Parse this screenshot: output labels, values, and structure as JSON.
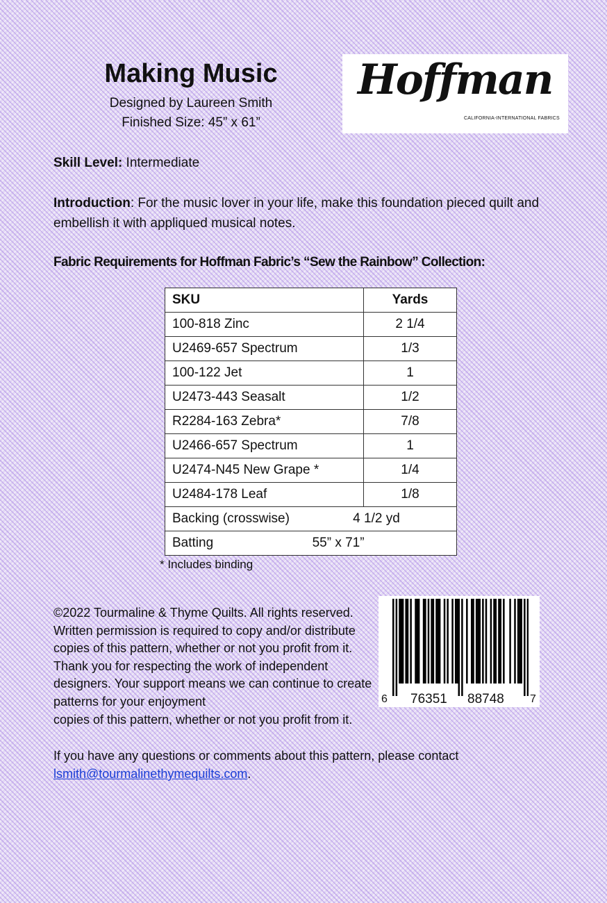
{
  "title": "Making Music",
  "designer": "Designed by Laureen Smith",
  "finished_size": "Finished Size: 45” x 61”",
  "logo": {
    "text": "Hoffman",
    "tagline": "CALIFORNIA-INTERNATIONAL FABRICS"
  },
  "skill": {
    "label": "Skill Level:",
    "value": " Intermediate"
  },
  "intro": {
    "label": "Introduction",
    "value": ":  For the music lover in your life, make this foundation pieced quilt and embellish it with appliqued musical notes."
  },
  "fabric_heading": "Fabric Requirements for Hoffman Fabric’s “Sew the Rainbow” Collection:",
  "table": {
    "headers": [
      "SKU",
      "Yards"
    ],
    "rows": [
      [
        "100-818 Zinc",
        "2 1/4"
      ],
      [
        "U2469-657 Spectrum",
        "1/3"
      ],
      [
        "100-122 Jet",
        "1"
      ],
      [
        "U2473-443 Seasalt",
        "1/2"
      ],
      [
        "R2284-163 Zebra*",
        "7/8"
      ],
      [
        "U2466-657 Spectrum",
        "1"
      ],
      [
        "U2474-N45 New Grape *",
        "1/4"
      ],
      [
        "U2484-178 Leaf",
        "1/8"
      ]
    ],
    "backing": {
      "label": "Backing (crosswise)",
      "value": "4 1/2 yd"
    },
    "batting": {
      "label": "Batting",
      "value": "55” x 71”"
    }
  },
  "footnote": "* Includes binding",
  "copyright": "©2022 Tourmaline & Thyme Quilts. All rights reserved. Written permission is  required to copy and/or distribute copies of this pattern, whether or not you profit from it. Thank you for respecting the work of independent designers. Your support means we can continue to create patterns for your enjoyment",
  "copyright_extra": "copies of this pattern, whether or not you profit from it.",
  "contact_text": "If you have any questions or comments about this pattern, please contact",
  "contact_email": "lsmith@tourmalinethymequilts.com",
  "contact_end": ".",
  "barcode": {
    "first": "6",
    "left": "76351",
    "right": "88748",
    "last": "7"
  }
}
